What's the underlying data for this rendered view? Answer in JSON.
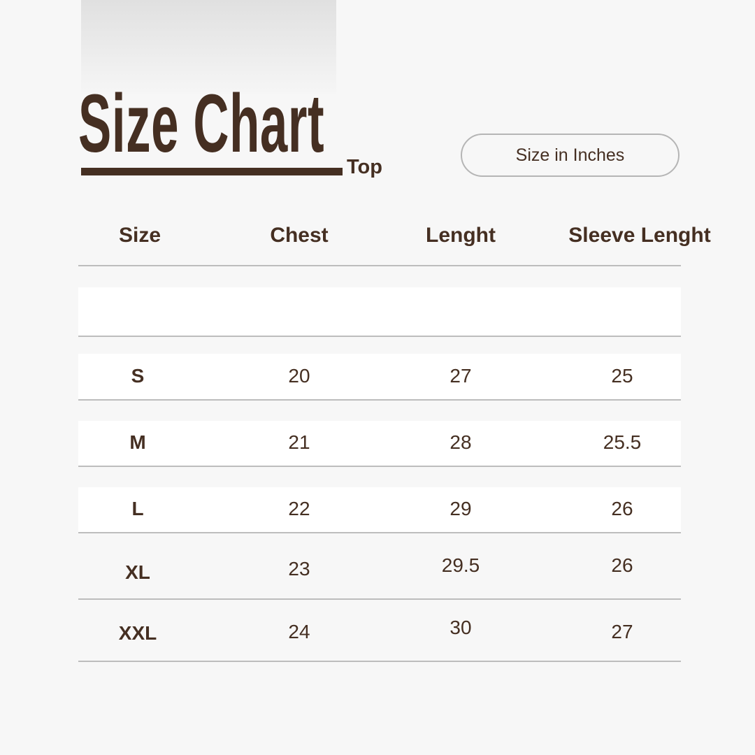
{
  "title": "Size Chart",
  "subtitle": "Top",
  "unit_label": "Size in Inches",
  "colors": {
    "text": "#452f22",
    "background": "#f7f7f7"
  },
  "headers": [
    "Size",
    "Chest",
    "Lenght",
    "Sleeve Lenght"
  ],
  "rows": [
    [
      "S",
      "20",
      "27",
      "25"
    ],
    [
      "M",
      "21",
      "28",
      "25.5"
    ],
    [
      "L",
      "22",
      "29",
      "26"
    ],
    [
      "XL",
      "23",
      "29.5",
      "26"
    ],
    [
      "XXL",
      "24",
      "30",
      "27"
    ]
  ]
}
